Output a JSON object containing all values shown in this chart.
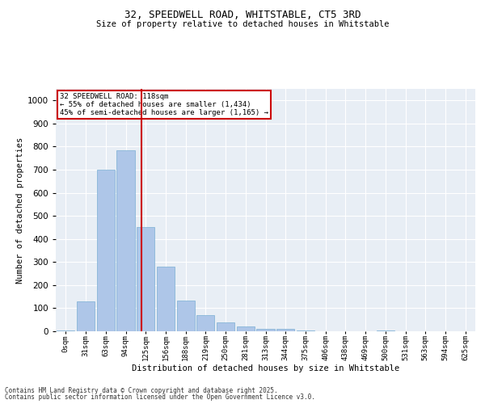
{
  "title_line1": "32, SPEEDWELL ROAD, WHITSTABLE, CT5 3RD",
  "title_line2": "Size of property relative to detached houses in Whitstable",
  "xlabel": "Distribution of detached houses by size in Whitstable",
  "ylabel": "Number of detached properties",
  "bar_labels": [
    "0sqm",
    "31sqm",
    "63sqm",
    "94sqm",
    "125sqm",
    "156sqm",
    "188sqm",
    "219sqm",
    "250sqm",
    "281sqm",
    "313sqm",
    "344sqm",
    "375sqm",
    "406sqm",
    "438sqm",
    "469sqm",
    "500sqm",
    "531sqm",
    "563sqm",
    "594sqm",
    "625sqm"
  ],
  "bar_values": [
    5,
    130,
    700,
    785,
    450,
    280,
    133,
    70,
    38,
    20,
    10,
    10,
    5,
    0,
    0,
    0,
    5,
    0,
    0,
    0,
    0
  ],
  "bar_color": "#aec6e8",
  "bar_edgecolor": "#7aafd4",
  "vline_color": "#cc0000",
  "annotation_text": "32 SPEEDWELL ROAD: 118sqm\n← 55% of detached houses are smaller (1,434)\n45% of semi-detached houses are larger (1,165) →",
  "ylim": [
    0,
    1050
  ],
  "yticks": [
    0,
    100,
    200,
    300,
    400,
    500,
    600,
    700,
    800,
    900,
    1000
  ],
  "bg_color": "#e8eef5",
  "footer_line1": "Contains HM Land Registry data © Crown copyright and database right 2025.",
  "footer_line2": "Contains public sector information licensed under the Open Government Licence v3.0."
}
